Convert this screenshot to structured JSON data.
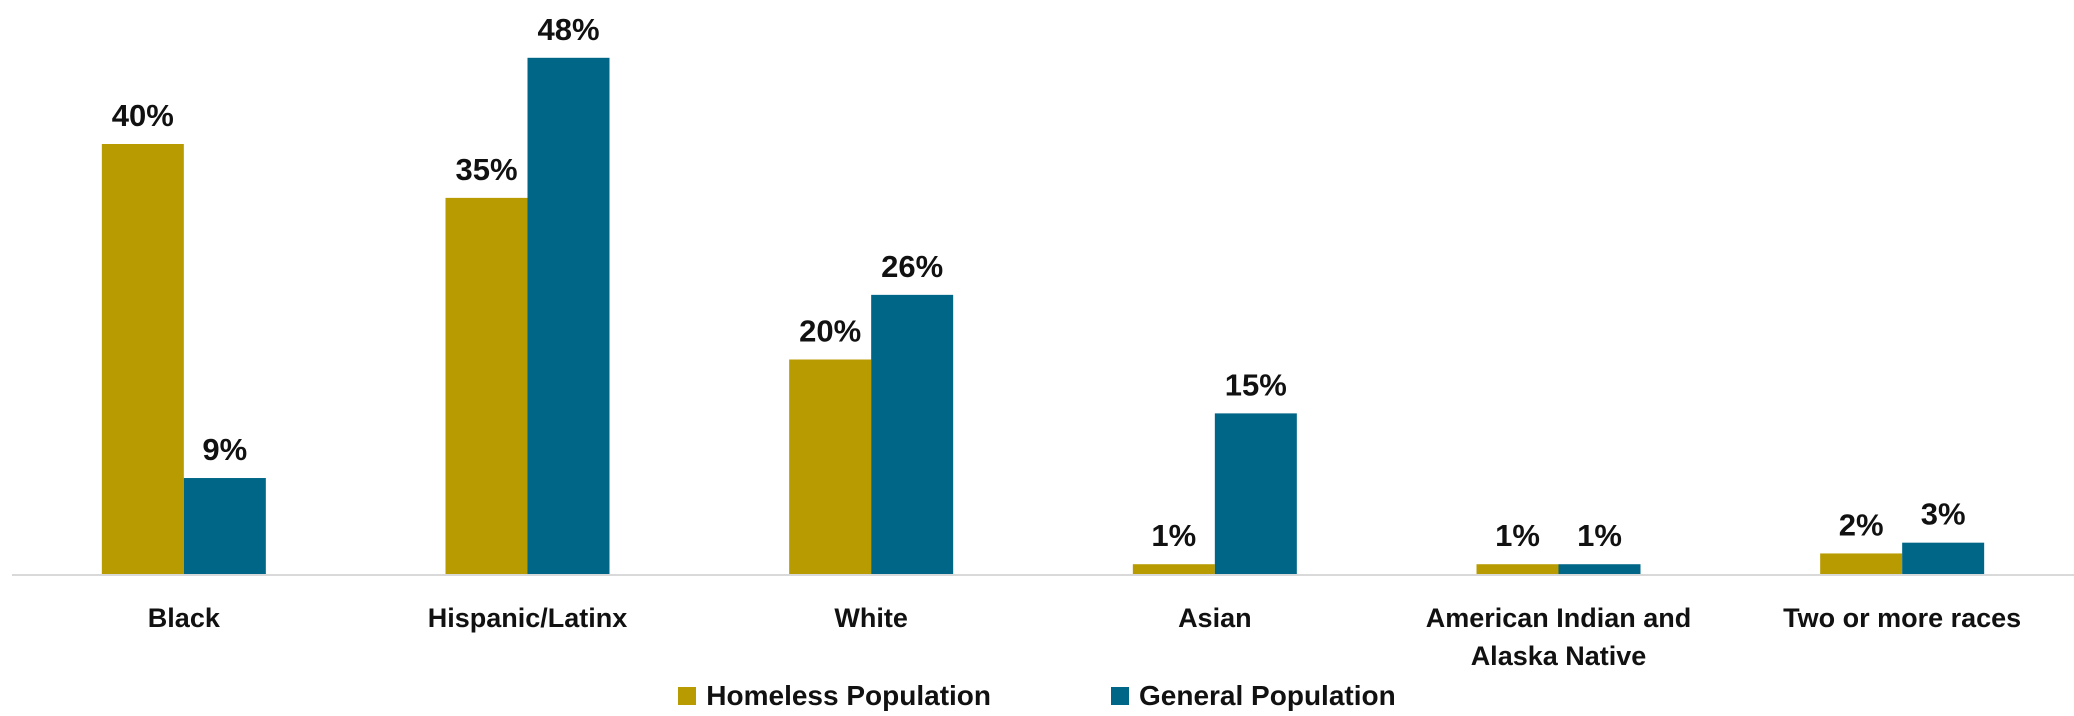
{
  "chart_data": {
    "type": "bar",
    "categories": [
      [
        "Black"
      ],
      [
        "Hispanic/Latinx"
      ],
      [
        "White"
      ],
      [
        "Asian"
      ],
      [
        "American Indian and",
        "Alaska Native"
      ],
      [
        "Two or more races"
      ]
    ],
    "series": [
      {
        "name": "Homeless Population",
        "color": "#B89B00",
        "values": [
          40,
          35,
          20,
          1,
          1,
          2
        ],
        "labels": [
          "40%",
          "35%",
          "20%",
          "1%",
          "1%",
          "2%"
        ]
      },
      {
        "name": "General Population",
        "color": "#006687",
        "values": [
          9,
          48,
          26,
          15,
          1,
          3
        ],
        "labels": [
          "9%",
          "48%",
          "26%",
          "15%",
          "1%",
          "3%"
        ]
      }
    ],
    "ylim": [
      0,
      48
    ],
    "grid": false,
    "legend_position": "bottom"
  }
}
